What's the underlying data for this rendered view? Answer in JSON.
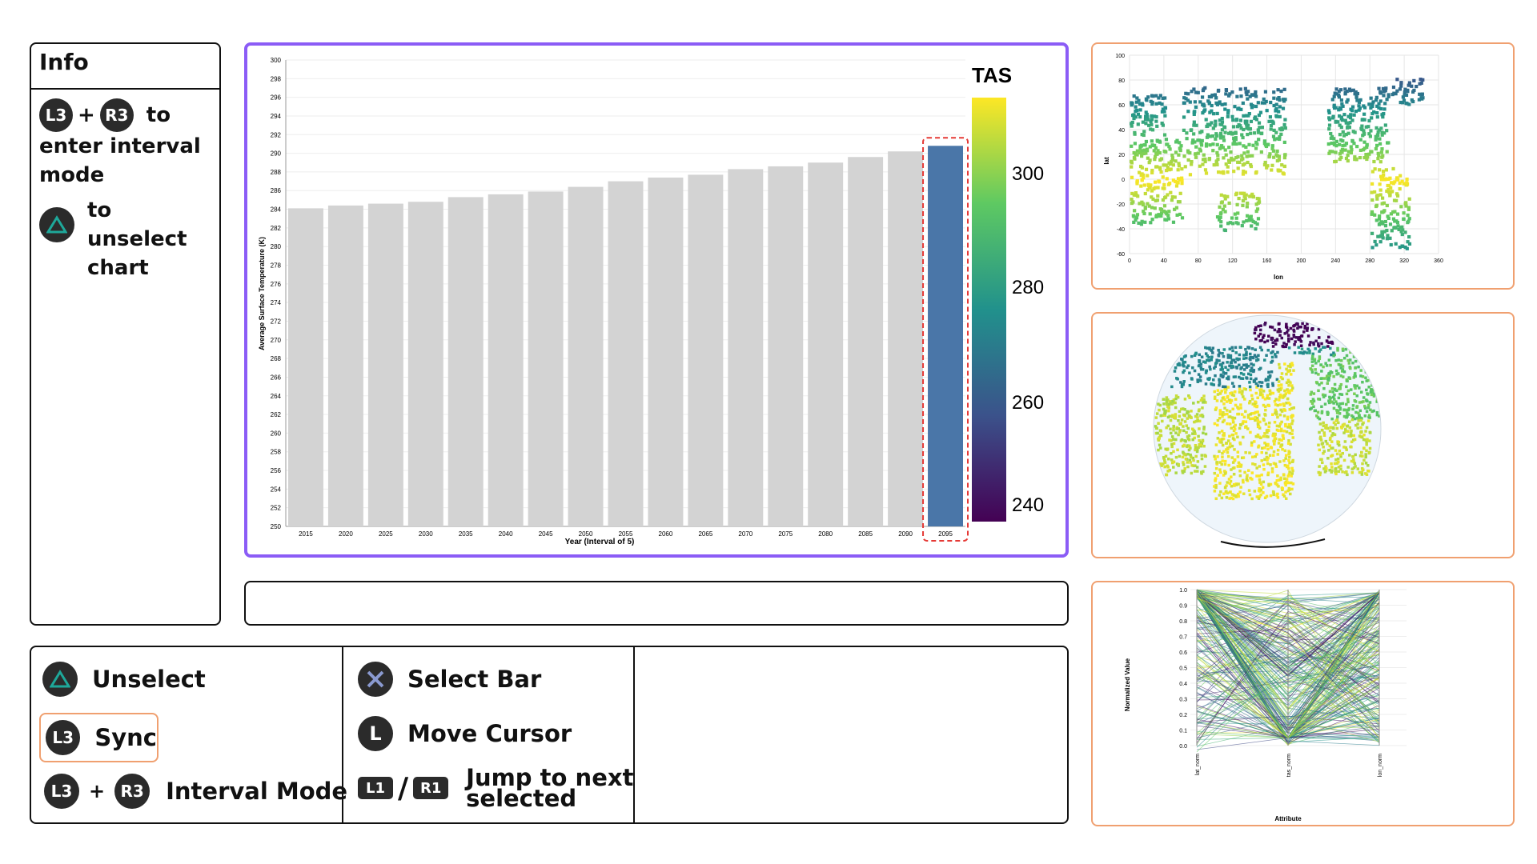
{
  "info": {
    "title": "Info",
    "btn_l3": "L3",
    "btn_r3": "R3",
    "plus": "+",
    "line1_end": "to",
    "line2": "enter interval",
    "line3": "mode",
    "unselect_line1": "to unselect",
    "unselect_line2": "chart"
  },
  "controls": {
    "unselect": "Unselect",
    "sync": "Sync",
    "interval_mode": "Interval Mode",
    "select_bar": "Select Bar",
    "move_cursor": "Move Cursor",
    "jump_line1": "Jump to next",
    "jump_line2": "selected",
    "btn_l3": "L3",
    "btn_r3": "R3",
    "btn_l": "L",
    "btn_l1": "L1",
    "btn_r1": "R1",
    "plus": "+",
    "slash": "/"
  },
  "colors": {
    "accent_purple": "#8b5cf6",
    "accent_orange": "#f0a070",
    "selected_bar": "#4a76a8",
    "bar_gray": "#d3d3d3",
    "dash_red": "#e53935"
  },
  "chart_data": {
    "type": "bar",
    "xlabel": "Year (Interval of 5)",
    "ylabel": "Average Surface Temperature (K)",
    "ylim": [
      250,
      300
    ],
    "yticks": [
      250,
      252,
      254,
      256,
      258,
      260,
      262,
      264,
      266,
      268,
      270,
      272,
      274,
      276,
      278,
      280,
      282,
      284,
      286,
      288,
      290,
      292,
      294,
      296,
      298,
      300
    ],
    "categories": [
      "2015",
      "2020",
      "2025",
      "2030",
      "2035",
      "2040",
      "2045",
      "2050",
      "2055",
      "2060",
      "2065",
      "2070",
      "2075",
      "2080",
      "2085",
      "2090",
      "2095"
    ],
    "values": [
      284.1,
      284.4,
      284.6,
      284.8,
      285.3,
      285.6,
      285.9,
      286.4,
      287.0,
      287.4,
      287.7,
      288.3,
      288.6,
      289.0,
      289.6,
      290.2,
      290.8
    ],
    "selected_index": 16,
    "legend": {
      "title": "TAS",
      "ticks": [
        "300",
        "280",
        "260",
        "240"
      ]
    }
  },
  "map_chart": {
    "ylabel": "lat",
    "xlabel": "lon",
    "yticks": [
      "100",
      "80",
      "60",
      "40",
      "20",
      "0",
      "-20",
      "-40",
      "-60"
    ],
    "xticks": [
      "0",
      "40",
      "80",
      "120",
      "160",
      "200",
      "240",
      "280",
      "320",
      "360"
    ]
  },
  "parallel_chart": {
    "ylabel": "Normalized Value",
    "xlabel": "Attribute",
    "yticks": [
      "1.0",
      "0.9",
      "0.8",
      "0.7",
      "0.6",
      "0.5",
      "0.4",
      "0.3",
      "0.2",
      "0.1",
      "0.0"
    ],
    "axes": [
      "lat_norm",
      "tas_norm",
      "lon_norm"
    ]
  }
}
